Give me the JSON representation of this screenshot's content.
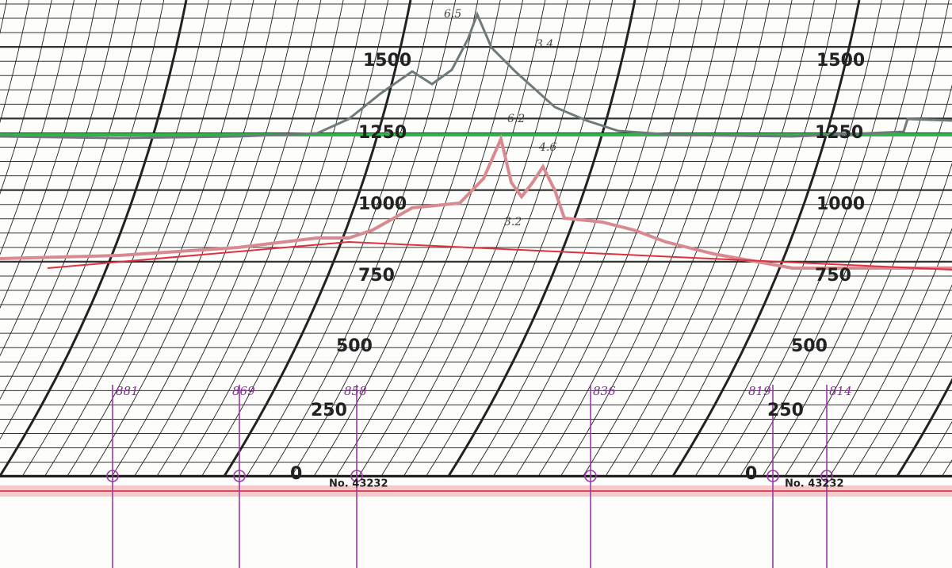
{
  "scale_left": [
    "1500",
    "1250",
    "1000",
    "750",
    "500",
    "250",
    "0"
  ],
  "scale_right": [
    "1500",
    "1250",
    "1000",
    "750",
    "500",
    "250",
    "0"
  ],
  "serial_numbers": [
    "No. 43232",
    "No. 43232"
  ],
  "station_marks": [
    "881",
    "869",
    "858",
    "836",
    "819",
    "814"
  ],
  "peak_notes": [
    "6.5",
    "3.4",
    "6.2",
    "4.6",
    "3.2"
  ]
}
